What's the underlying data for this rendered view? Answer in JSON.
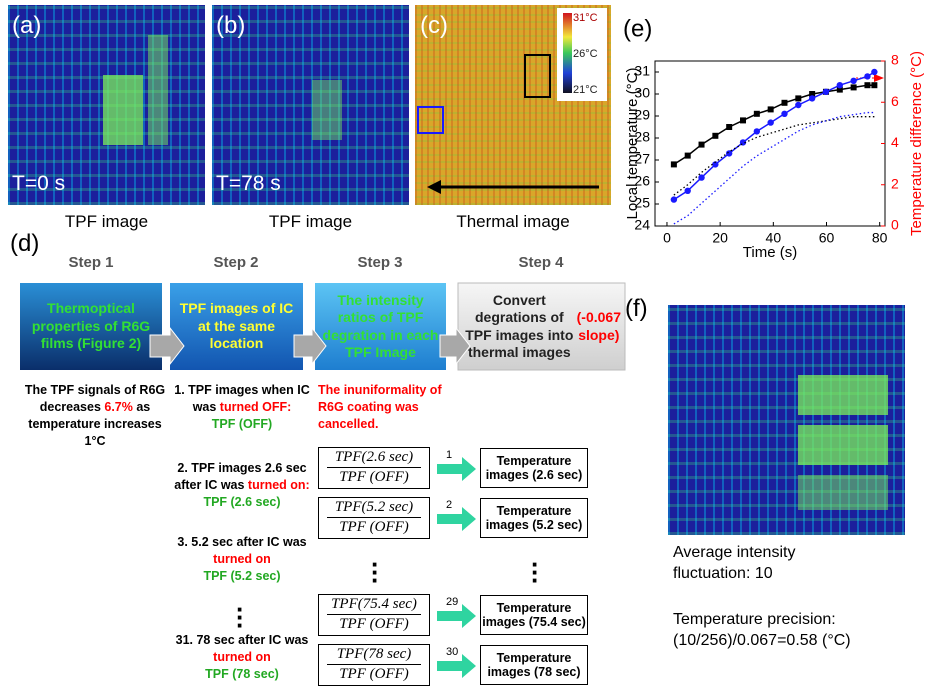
{
  "panels": {
    "a": {
      "label": "(a)",
      "time": "T=0 s",
      "caption": "TPF image"
    },
    "b": {
      "label": "(b)",
      "time": "T=78 s",
      "caption": "TPF image"
    },
    "c": {
      "label": "(c)",
      "caption": "Thermal image",
      "colorbar": [
        "31°C",
        "26°C",
        "21°C"
      ]
    },
    "d": {
      "label": "(d)",
      "steps": [
        {
          "title": "Step 1",
          "box": [
            {
              "text": "Thermoptical properties of R6G films (Figure 2)",
              "color": "#33e033"
            }
          ]
        },
        {
          "title": "Step 2",
          "box": [
            {
              "text": "TPF images of IC at the same location",
              "color": "#ffff33"
            }
          ]
        },
        {
          "title": "Step 3",
          "box": [
            {
              "text": "The intensity ratios of TPF degration in each TPF Image",
              "color": "#33e033"
            }
          ]
        },
        {
          "title": "Step 4",
          "box": [
            {
              "text": "Convert degrations of TPF images into thermal images",
              "color": "#222222"
            },
            {
              "text": "(-0.067 slope)",
              "color": "#ff0000"
            }
          ]
        }
      ],
      "step1_note": [
        {
          "text": "The TPF signals of R6G decreases ",
          "color": "#000000"
        },
        {
          "text": "6.7%",
          "color": "#ff0000"
        },
        {
          "text": " as temperature increases 1°C",
          "color": "#000000"
        }
      ],
      "step2_items": [
        [
          {
            "text": "1. TPF images when IC was ",
            "color": "#000000"
          },
          {
            "text": "turned OFF:",
            "color": "#ff0000"
          },
          {
            "text": "TPF (OFF)",
            "color": "#22a822"
          }
        ],
        [
          {
            "text": "2. TPF images 2.6 sec after IC was ",
            "color": "#000000"
          },
          {
            "text": "turned on:",
            "color": "#ff0000"
          },
          {
            "text": "TPF (2.6 sec)",
            "color": "#22a822"
          }
        ],
        [
          {
            "text": "3. 5.2 sec after IC was ",
            "color": "#000000"
          },
          {
            "text": "turned on",
            "color": "#ff0000"
          },
          {
            "text": "TPF (5.2 sec)",
            "color": "#22a822"
          }
        ],
        [
          {
            "text": "31. 78 sec after IC was ",
            "color": "#000000"
          },
          {
            "text": "turned on",
            "color": "#ff0000"
          },
          {
            "text": "TPF (78 sec)",
            "color": "#22a822"
          }
        ]
      ],
      "step3_note": "The inuniformality of R6G coating was cancelled.",
      "ratios": [
        {
          "num": "TPF(2.6 sec)",
          "den": "TPF (OFF)",
          "index": "1",
          "result": "Temperature images (2.6 sec)"
        },
        {
          "num": "TPF(5.2 sec)",
          "den": "TPF (OFF)",
          "index": "2",
          "result": "Temperature images (5.2 sec)"
        },
        {
          "num": "TPF(75.4 sec)",
          "den": "TPF (OFF)",
          "index": "29",
          "result": "Temperature images (75.4 sec)"
        },
        {
          "num": "TPF(78 sec)",
          "den": "TPF (OFF)",
          "index": "30",
          "result": "Temperature images (78 sec)"
        }
      ]
    },
    "f": {
      "label": "(f)",
      "notes": [
        "Average intensity fluctuation: 10",
        "Temperature precision: (10/256)/0.067=0.58 (°C)"
      ]
    }
  },
  "chart_data": {
    "type": "line",
    "label": "(e)",
    "x_label": "Time (s)",
    "y_label": "Local temperature (°C)",
    "y2_label": "Temperature difference (°C)",
    "x": [
      2.6,
      7.8,
      13,
      18.2,
      23.4,
      28.6,
      33.8,
      39,
      44.2,
      49.4,
      54.6,
      59.8,
      65,
      70.2,
      75.4,
      78
    ],
    "series": [
      {
        "color": "#000000",
        "marker": "square",
        "values": [
          26.8,
          27.2,
          27.7,
          28.1,
          28.5,
          28.8,
          29.1,
          29.3,
          29.6,
          29.8,
          30.0,
          30.1,
          30.2,
          30.3,
          30.4,
          30.4
        ]
      },
      {
        "color": "#1a1aff",
        "marker": "circle",
        "values": [
          25.2,
          25.6,
          26.2,
          26.8,
          27.3,
          27.8,
          28.3,
          28.7,
          29.1,
          29.5,
          29.8,
          30.1,
          30.4,
          30.6,
          30.8,
          31.0
        ]
      },
      {
        "color": "#000000",
        "dash": true,
        "axis": "y2",
        "values": [
          1.5,
          2.0,
          2.6,
          3.1,
          3.6,
          4.0,
          4.3,
          4.5,
          4.7,
          4.9,
          5.0,
          5.1,
          5.2,
          5.3,
          5.3,
          5.3
        ]
      },
      {
        "color": "#1a1aff",
        "dash": true,
        "axis": "y2",
        "values": [
          0.1,
          0.5,
          1.1,
          1.7,
          2.3,
          2.9,
          3.4,
          3.8,
          4.2,
          4.6,
          4.9,
          5.1,
          5.3,
          5.4,
          5.5,
          5.5
        ]
      }
    ],
    "xlim": [
      -4.5,
      82
    ],
    "xticks": [
      0,
      20,
      40,
      60,
      80
    ],
    "ylim": [
      24,
      31.5
    ],
    "yticks": [
      24,
      25,
      26,
      27,
      28,
      29,
      30,
      31
    ],
    "y2lim": [
      0,
      8
    ],
    "y2ticks": [
      0,
      2,
      4,
      6,
      8
    ],
    "y2_color": "#ff0000"
  }
}
